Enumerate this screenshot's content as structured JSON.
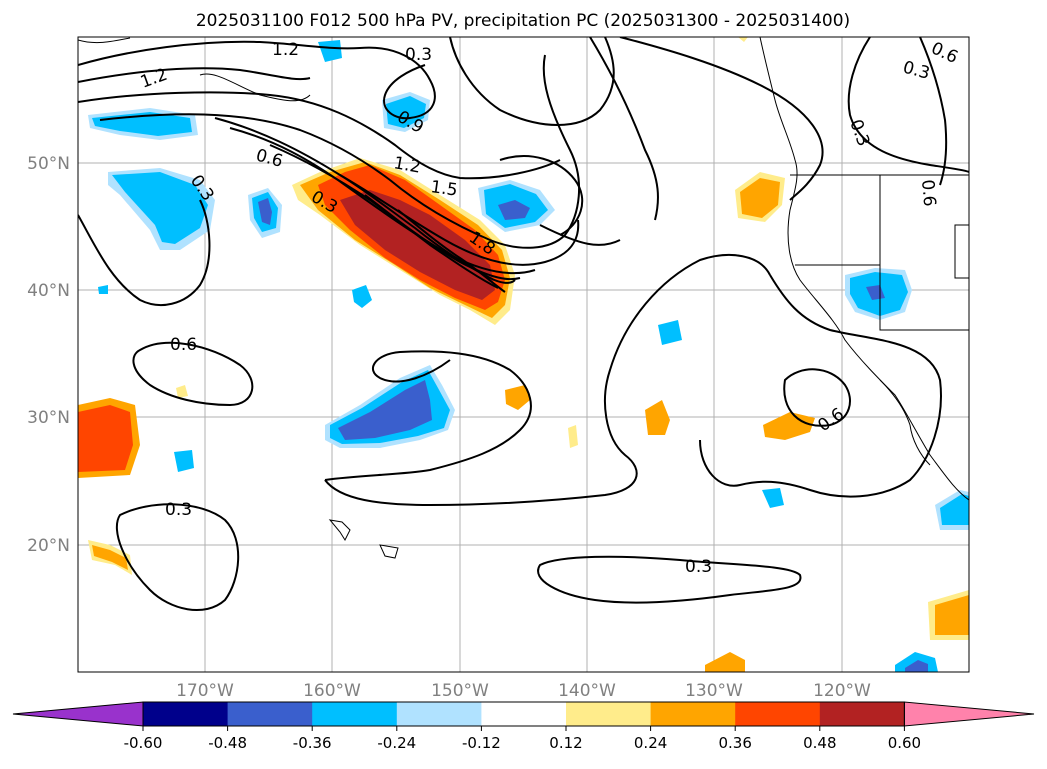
{
  "title": "2025031100 F012 500 hPa PV, precipitation PC (2025031300 - 2025031400)",
  "map": {
    "lat_labels": [
      "50°N",
      "40°N",
      "30°N",
      "20°N"
    ],
    "lon_labels": [
      "170°W",
      "160°W",
      "150°W",
      "140°W",
      "130°W",
      "120°W"
    ],
    "contour_labels": [
      "1.2",
      "1.2",
      "0.6",
      "0.9",
      "0.6",
      "0.3",
      "0.6",
      "0.3",
      "1.2",
      "1.5",
      "1.8",
      "0.3",
      "0.3",
      "0.6",
      "0.6",
      "0.3",
      "0.3",
      "0.3"
    ]
  },
  "colorbar": {
    "ticks": [
      "-0.60",
      "-0.48",
      "-0.36",
      "-0.24",
      "-0.12",
      "0.12",
      "0.24",
      "0.36",
      "0.48",
      "0.60"
    ],
    "colors": [
      "#9932CC",
      "#00008B",
      "#3A5FCD",
      "#00BFFF",
      "#B0E2FF",
      "#FFFFFF",
      "#FFEC8B",
      "#FFA500",
      "#FF4500",
      "#B22222",
      "#FF82AB"
    ]
  }
}
